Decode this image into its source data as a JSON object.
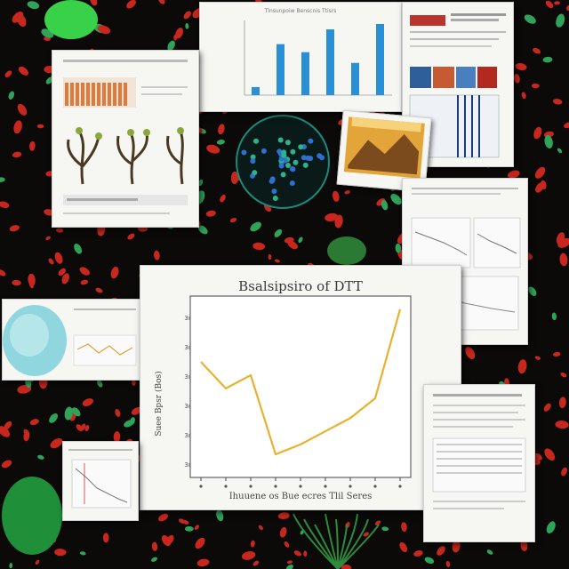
{
  "scene": {
    "description_colors": {
      "background": "#0b0a08",
      "leaf_red": "#c8271e",
      "leaf_green": "#2fa35a",
      "plant_green": "#39d04a",
      "card": "#f6f6f3"
    }
  },
  "main_chart": {
    "title": "Bsalsipsiro of DTT",
    "xlabel": "Ihuuene os Bue ecres Tlil Seres",
    "ylabel": "Suee Bpsr (Bos)",
    "yticks": [
      "3ı.",
      "3ı.",
      "3ı.",
      "3ı.",
      "3ı.",
      "3ı."
    ],
    "line_color": "#e8b22e"
  },
  "chart_data": {
    "type": "line",
    "title": "Bsalsipsiro of DTT",
    "xlabel": "Ihuuene os Bue ecres Tlil Seres",
    "ylabel": "Suee Bpsr (Bos)",
    "x": [
      0,
      1,
      2,
      3,
      4,
      5,
      6,
      7,
      8
    ],
    "series": [
      {
        "values": [
          4.0,
          3.2,
          3.6,
          1.2,
          1.5,
          1.9,
          2.3,
          2.9,
          5.6
        ]
      }
    ],
    "ylim": [
      0.5,
      6.0
    ],
    "grid": false
  },
  "bar_chart_top": {
    "title": "Tlnsunpoiw Benscnis Ttisrs",
    "values": [
      0.6,
      3.8,
      3.2,
      4.9,
      2.4,
      5.3
    ],
    "bar_color": "#2b8fd6"
  }
}
